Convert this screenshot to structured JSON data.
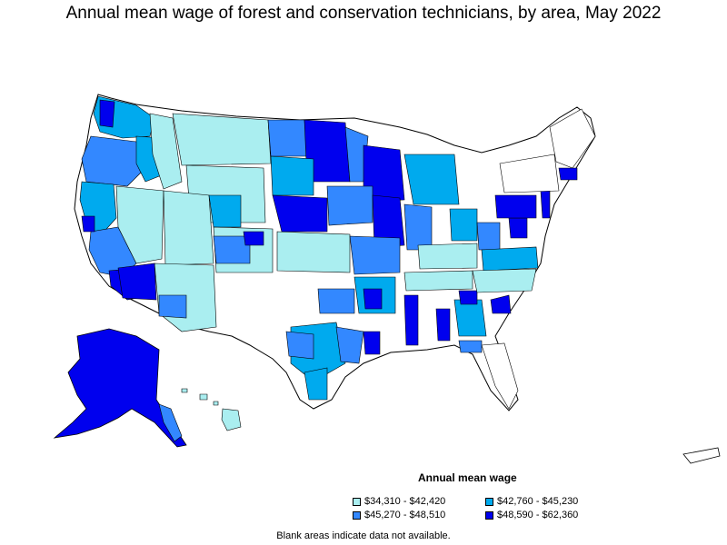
{
  "title": "Annual mean wage of forest and conservation technicians, by area, May 2022",
  "legend": {
    "title": "Annual mean wage",
    "items": [
      {
        "label": "$34,310 - $42,420",
        "color": "#aaeef0"
      },
      {
        "label": "$42,760 - $45,230",
        "color": "#00aaee"
      },
      {
        "label": "$45,270 - $48,510",
        "color": "#3388ff"
      },
      {
        "label": "$48,590 - $62,360",
        "color": "#0000ee"
      }
    ]
  },
  "footnote": "Blank areas indicate data not available.",
  "colors": {
    "no_data": "#ffffff",
    "border": "#000000"
  }
}
